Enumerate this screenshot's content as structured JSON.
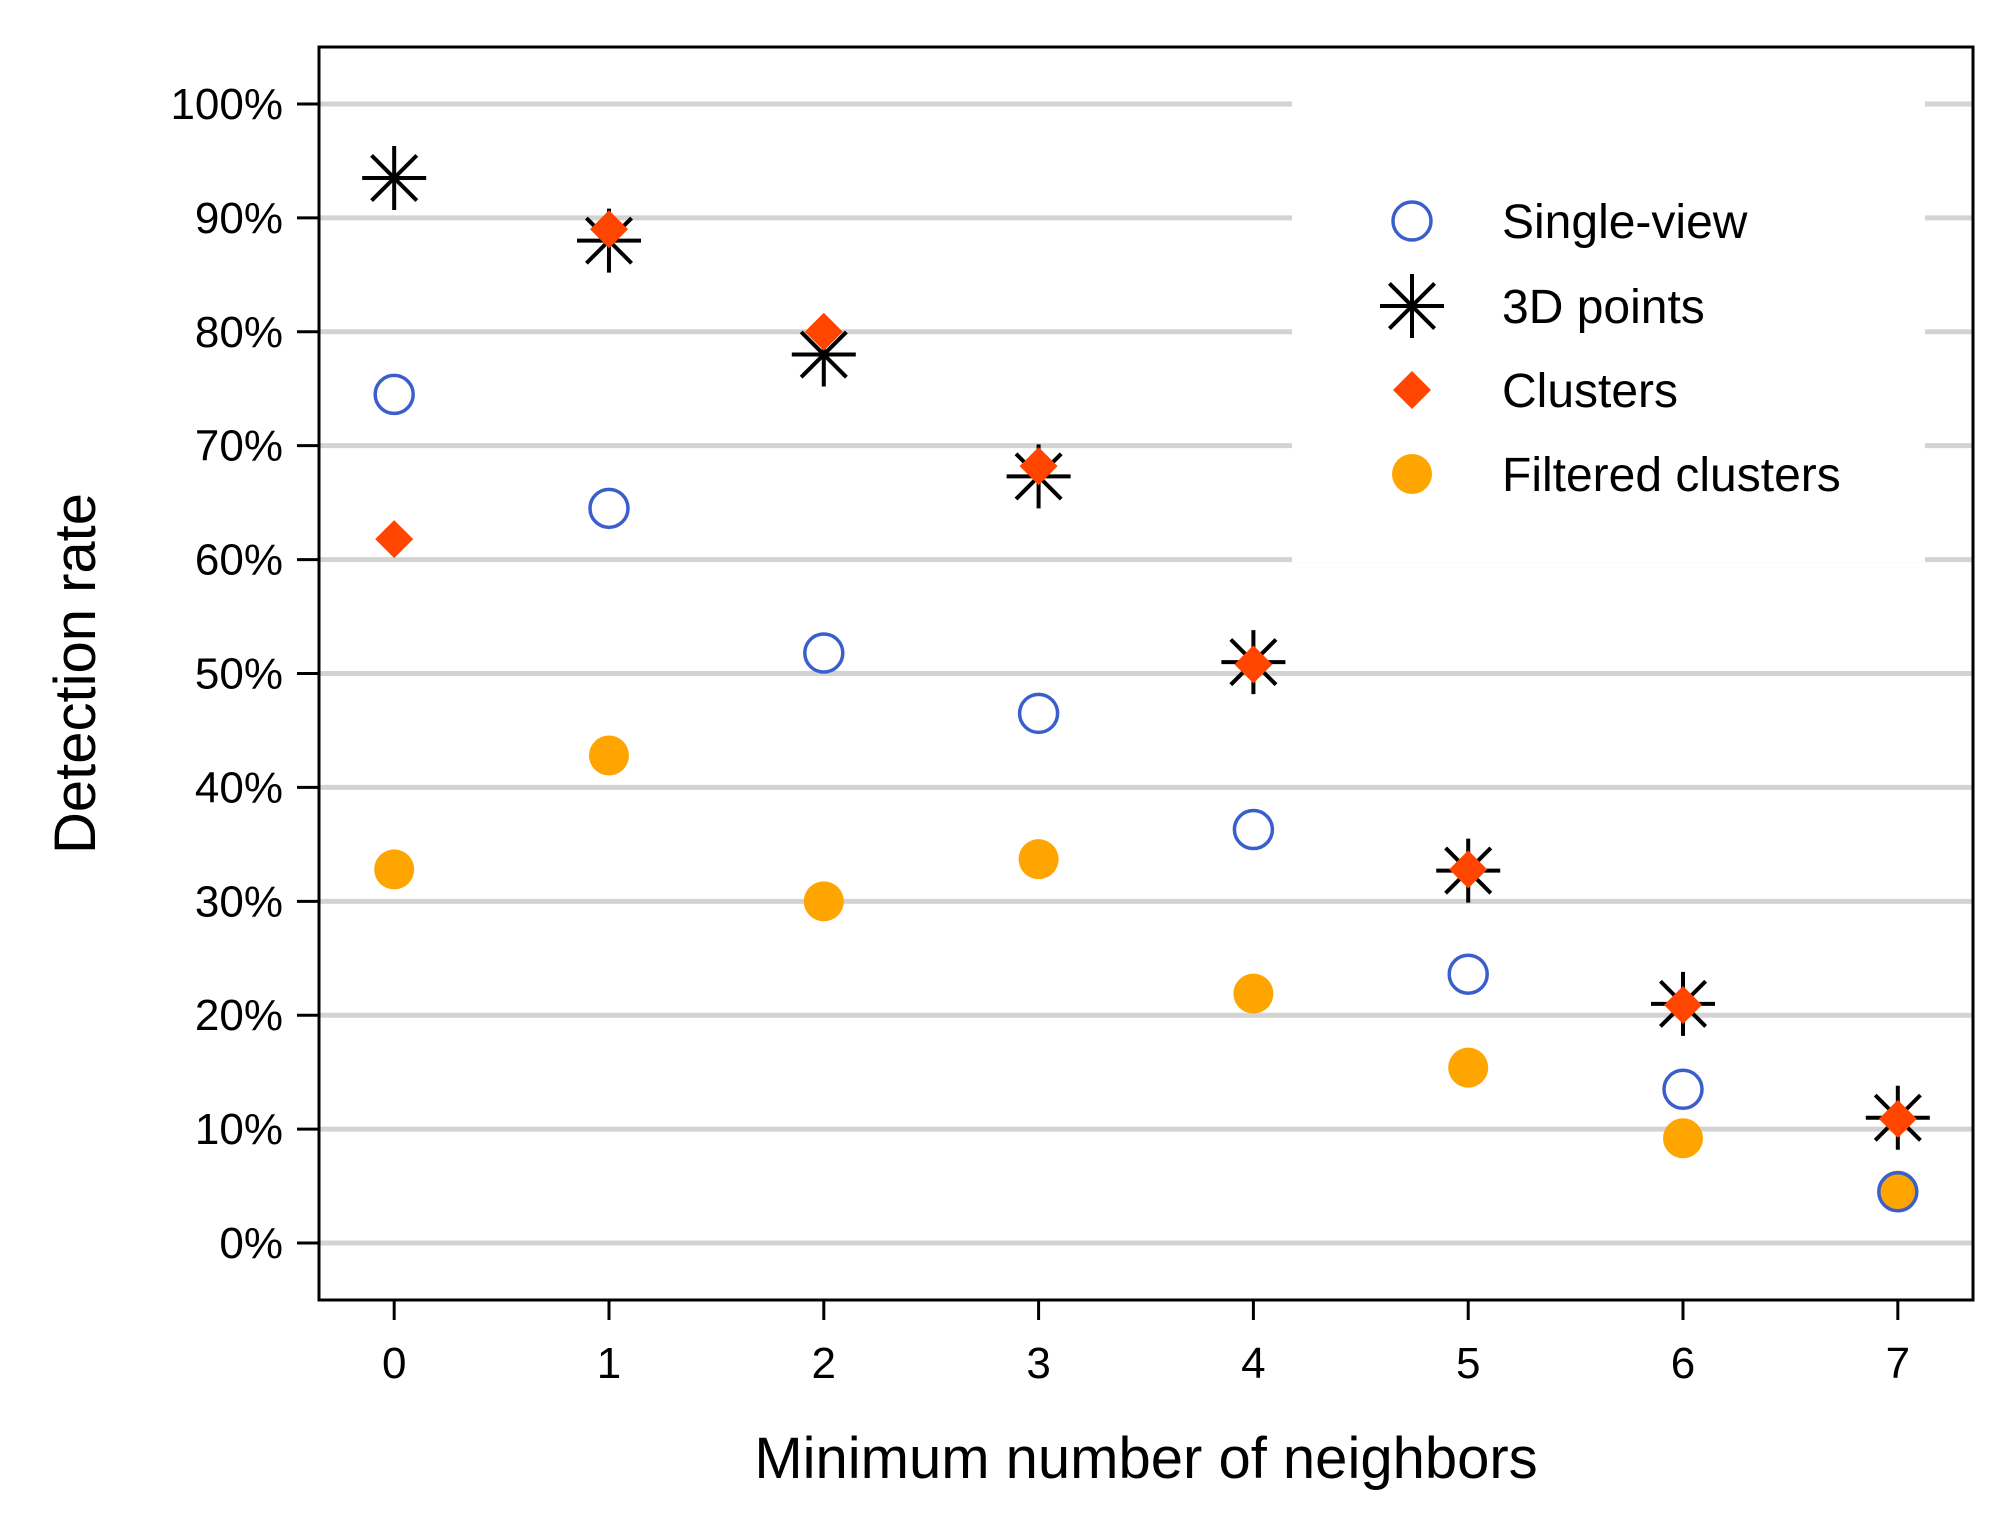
{
  "chart_data": {
    "type": "scatter",
    "xlabel": "Minimum number of neighbors",
    "ylabel": "Detection rate",
    "x": [
      0,
      1,
      2,
      3,
      4,
      5,
      6,
      7
    ],
    "xlim": [
      -0.35,
      7.35
    ],
    "ylim": [
      -5,
      105
    ],
    "y_ticks": [
      0,
      10,
      20,
      30,
      40,
      50,
      60,
      70,
      80,
      90,
      100
    ],
    "y_tick_labels": [
      "0%",
      "10%",
      "20%",
      "30%",
      "40%",
      "50%",
      "60%",
      "70%",
      "80%",
      "90%",
      "100%"
    ],
    "x_tick_labels": [
      "0",
      "1",
      "2",
      "3",
      "4",
      "5",
      "6",
      "7"
    ],
    "grid": "horizontal",
    "legend_position": "top-right",
    "series": [
      {
        "name": "Single-view",
        "marker": "open-circle",
        "color": "#3a5fcd",
        "values": [
          74.5,
          64.5,
          51.8,
          46.5,
          36.3,
          23.6,
          13.5,
          4.5
        ]
      },
      {
        "name": "3D points",
        "marker": "asterisk",
        "color": "#000000",
        "values": [
          93.5,
          88.0,
          78.0,
          67.3,
          51.0,
          32.7,
          21.0,
          11.0
        ]
      },
      {
        "name": "Clusters",
        "marker": "diamond",
        "color": "#ff4500",
        "values": [
          61.8,
          89.0,
          80.0,
          68.2,
          50.8,
          32.8,
          20.9,
          10.9
        ]
      },
      {
        "name": "Filtered clusters",
        "marker": "filled-circle",
        "color": "#ffa500",
        "values": [
          32.8,
          42.8,
          30.0,
          33.7,
          21.9,
          15.4,
          9.2,
          4.6
        ]
      }
    ]
  }
}
